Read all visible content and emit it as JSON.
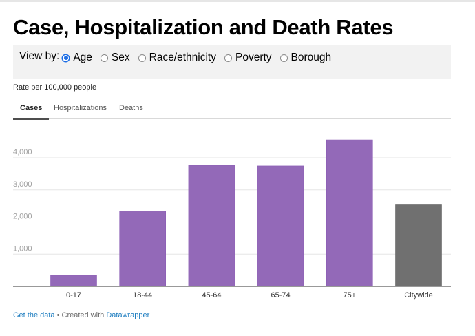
{
  "title": "Case, Hospitalization and Death Rates",
  "view_by": {
    "label": "View by:",
    "options": [
      {
        "label": "Age",
        "selected": true
      },
      {
        "label": "Sex",
        "selected": false
      },
      {
        "label": "Race/ethnicity",
        "selected": false
      },
      {
        "label": "Poverty",
        "selected": false
      },
      {
        "label": "Borough",
        "selected": false
      }
    ]
  },
  "subtitle": "Rate per 100,000 people",
  "tabs": [
    {
      "label": "Cases",
      "active": true
    },
    {
      "label": "Hospitalizations",
      "active": false
    },
    {
      "label": "Deaths",
      "active": false
    }
  ],
  "footer": {
    "get_data": "Get the data",
    "separator": " • Created with ",
    "datawrapper": "Datawrapper"
  },
  "colors": {
    "bar_primary": "#9369b8",
    "bar_highlight": "#707070",
    "gridline": "#e6e6e6",
    "baseline": "#333333",
    "tick_label": "#a0a0a0",
    "link": "#1a7bbf",
    "radio_selected": "#1f6fe5"
  },
  "chart_data": {
    "type": "bar",
    "title": "Case, Hospitalization and Death Rates",
    "subtitle": "Rate per 100,000 people",
    "xlabel": "",
    "ylabel": "",
    "categories": [
      "0-17",
      "18-44",
      "45-64",
      "65-74",
      "75+",
      "Citywide"
    ],
    "values": [
      340,
      2340,
      3765,
      3745,
      4555,
      2535
    ],
    "highlight": [
      "Citywide"
    ],
    "ylim": [
      0,
      4800
    ],
    "yticks": [
      1000,
      2000,
      3000,
      4000
    ],
    "ytick_labels": [
      "1,000",
      "2,000",
      "3,000",
      "4,000"
    ],
    "grid": true,
    "legend": "none"
  }
}
